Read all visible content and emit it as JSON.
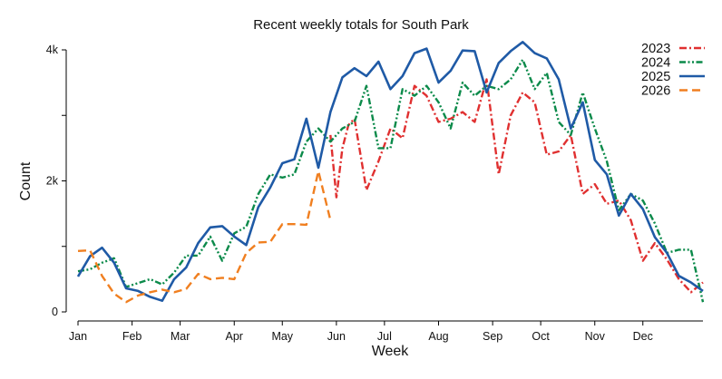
{
  "chart_data": {
    "type": "line",
    "title": "Recent weekly totals for South Park",
    "xlabel": "Week",
    "ylabel": "Count",
    "xlim": [
      1,
      53
    ],
    "ylim": [
      0,
      4200
    ],
    "x_ticks": [
      {
        "week": 1,
        "label": "Jan"
      },
      {
        "week": 5.5,
        "label": "Feb"
      },
      {
        "week": 9.5,
        "label": "Mar"
      },
      {
        "week": 14,
        "label": "Apr"
      },
      {
        "week": 18,
        "label": "May"
      },
      {
        "week": 22.5,
        "label": "Jun"
      },
      {
        "week": 26.5,
        "label": "Jul"
      },
      {
        "week": 31,
        "label": "Aug"
      },
      {
        "week": 35.5,
        "label": "Sep"
      },
      {
        "week": 39.5,
        "label": "Oct"
      },
      {
        "week": 44,
        "label": "Nov"
      },
      {
        "week": 48,
        "label": "Dec"
      }
    ],
    "y_ticks": [
      {
        "value": 0,
        "label": "0"
      },
      {
        "value": 1000,
        "label": ""
      },
      {
        "value": 2000,
        "label": "2k"
      },
      {
        "value": 3000,
        "label": ""
      },
      {
        "value": 4000,
        "label": "4k"
      }
    ],
    "legend_position": "top-right",
    "series": [
      {
        "name": "2023",
        "color": "#e03030",
        "dash": "dashdot",
        "x": [
          22,
          22.5,
          23,
          23.5,
          24,
          25,
          26,
          27,
          28,
          29,
          30,
          31,
          32,
          33,
          34,
          35,
          36,
          37,
          38,
          39,
          40,
          41,
          42,
          43,
          44,
          45,
          46,
          47,
          48,
          49,
          50,
          51,
          52,
          53
        ],
        "values": [
          2700,
          1750,
          2500,
          2850,
          2950,
          1860,
          2300,
          2800,
          2650,
          3450,
          3300,
          2900,
          2950,
          3050,
          2900,
          3550,
          2100,
          3000,
          3350,
          3200,
          2400,
          2450,
          2700,
          1800,
          1950,
          1650,
          1700,
          1400,
          780,
          1050,
          800,
          500,
          300,
          450
        ]
      },
      {
        "name": "2024",
        "color": "#0b8a4a",
        "dash": "dashdotdot",
        "x": [
          1,
          2,
          3,
          4,
          5,
          6,
          7,
          8,
          9,
          10,
          11,
          12,
          13,
          14,
          15,
          16,
          17,
          18,
          19,
          20,
          21,
          22,
          23,
          24,
          25,
          26,
          27,
          28,
          29,
          30,
          31,
          32,
          33,
          34,
          35,
          36,
          37,
          38,
          39,
          40,
          41,
          42,
          43,
          44,
          45,
          46,
          47,
          48,
          49,
          50,
          51,
          52,
          53
        ],
        "values": [
          620,
          650,
          750,
          820,
          380,
          440,
          500,
          420,
          600,
          860,
          860,
          1150,
          780,
          1200,
          1300,
          1800,
          2100,
          2050,
          2100,
          2600,
          2800,
          2600,
          2800,
          2900,
          3450,
          2500,
          2500,
          3400,
          3300,
          3450,
          3200,
          2800,
          3500,
          3300,
          3450,
          3400,
          3550,
          3850,
          3400,
          3650,
          2900,
          2700,
          3350,
          2800,
          2300,
          1550,
          1800,
          1700,
          1350,
          900,
          950,
          950,
          150
        ]
      },
      {
        "name": "2025",
        "color": "#1f5aa6",
        "dash": "solid",
        "x": [
          1,
          2,
          3,
          4,
          5,
          6,
          7,
          8,
          9,
          10,
          11,
          12,
          13,
          14,
          15,
          16,
          17,
          18,
          19,
          20,
          21,
          22,
          23,
          24,
          25,
          26,
          27,
          28,
          29,
          30,
          31,
          32,
          33,
          34,
          35,
          36,
          37,
          38,
          39,
          40,
          41,
          42,
          43,
          44,
          45,
          46,
          47,
          48,
          49,
          50,
          51,
          52,
          53
        ],
        "values": [
          540,
          850,
          980,
          750,
          360,
          320,
          230,
          170,
          500,
          680,
          1050,
          1290,
          1310,
          1150,
          1020,
          1600,
          1900,
          2270,
          2330,
          2950,
          2200,
          3050,
          3580,
          3720,
          3600,
          3820,
          3400,
          3600,
          3950,
          4020,
          3500,
          3680,
          3990,
          3980,
          3350,
          3800,
          3980,
          4120,
          3950,
          3870,
          3550,
          2800,
          3200,
          2320,
          2100,
          1470,
          1800,
          1570,
          1140,
          900,
          550,
          450,
          320
        ]
      },
      {
        "name": "2026",
        "color": "#f07f20",
        "dash": "dashed",
        "x": [
          1,
          2,
          3,
          4,
          5,
          6,
          7,
          8,
          9,
          10,
          11,
          12,
          13,
          14,
          15,
          16,
          17,
          18,
          19,
          20,
          21,
          22
        ],
        "values": [
          930,
          940,
          550,
          280,
          150,
          250,
          300,
          340,
          300,
          350,
          580,
          500,
          520,
          500,
          900,
          1060,
          1070,
          1340,
          1340,
          1330,
          2150,
          1400
        ]
      }
    ]
  }
}
